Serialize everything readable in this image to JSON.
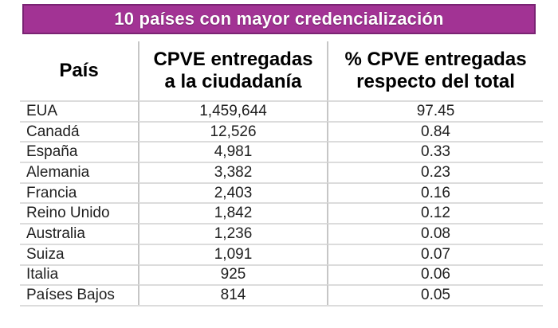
{
  "banner": {
    "title": "10 países con mayor credencialización",
    "fill_color": "#A23394",
    "border_color": "#7A2373",
    "text_color": "#FFFFFF"
  },
  "table": {
    "headers": {
      "col1": "País",
      "col2": "CPVE entregadas\na la ciudadanía",
      "col3": "% CPVE entregadas\nrespecto del total"
    },
    "rows": [
      {
        "pais": "EUA",
        "cpve": "1,459,644",
        "pct": "97.45"
      },
      {
        "pais": "Canadá",
        "cpve": "12,526",
        "pct": "0.84"
      },
      {
        "pais": "España",
        "cpve": "4,981",
        "pct": "0.33"
      },
      {
        "pais": "Alemania",
        "cpve": "3,382",
        "pct": "0.23"
      },
      {
        "pais": "Francia",
        "cpve": "2,403",
        "pct": "0.16"
      },
      {
        "pais": "Reino Unido",
        "cpve": "1,842",
        "pct": "0.12"
      },
      {
        "pais": "Australia",
        "cpve": "1,236",
        "pct": "0.08"
      },
      {
        "pais": "Suiza",
        "cpve": "1,091",
        "pct": "0.07"
      },
      {
        "pais": "Italia",
        "cpve": "925",
        "pct": "0.06"
      },
      {
        "pais": "Países Bajos",
        "cpve": "814",
        "pct": "0.05"
      }
    ],
    "gridline_color": "#DCDCDC",
    "divider_color": "#C6C6C6"
  },
  "chart_data": {
    "type": "table",
    "title": "10 países con mayor credencialización",
    "columns": [
      "País",
      "CPVE entregadas a la ciudadanía",
      "% CPVE entregadas respecto del total"
    ],
    "rows": [
      [
        "EUA",
        1459644,
        97.45
      ],
      [
        "Canadá",
        12526,
        0.84
      ],
      [
        "España",
        4981,
        0.33
      ],
      [
        "Alemania",
        3382,
        0.23
      ],
      [
        "Francia",
        2403,
        0.16
      ],
      [
        "Reino Unido",
        1842,
        0.12
      ],
      [
        "Australia",
        1236,
        0.08
      ],
      [
        "Suiza",
        1091,
        0.07
      ],
      [
        "Italia",
        925,
        0.06
      ],
      [
        "Países Bajos",
        814,
        0.05
      ]
    ]
  }
}
